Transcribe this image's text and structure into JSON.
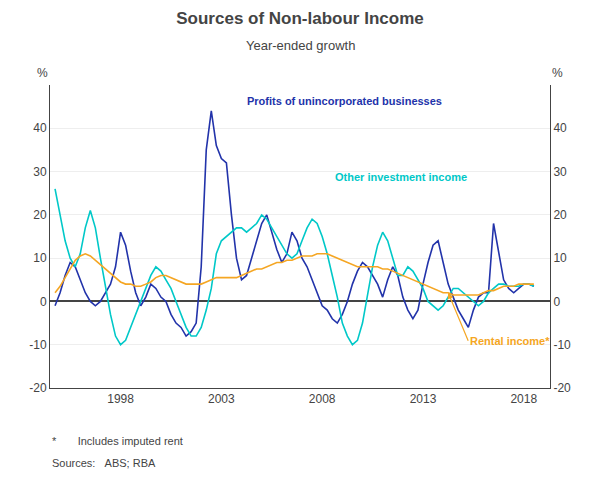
{
  "chart_data": {
    "type": "line",
    "title": "Sources of Non-labour Income",
    "subtitle": "Year-ended growth",
    "ylabel": "%",
    "y2label": "%",
    "footnotes": [
      "*       Includes imputed rent",
      "Sources:   ABS; RBA"
    ],
    "xlim": [
      1994.5,
      2019.3
    ],
    "xticks": [
      1998,
      2003,
      2008,
      2013,
      2018
    ],
    "ylim": [
      -20,
      50
    ],
    "yticks": [
      -20,
      -10,
      0,
      10,
      20,
      30,
      40
    ],
    "y2lim": [
      -20,
      50
    ],
    "y2ticks": [
      -20,
      -10,
      0,
      10,
      20,
      30,
      40
    ],
    "grid": "y",
    "x": [
      1994.75,
      1995.0,
      1995.25,
      1995.5,
      1995.75,
      1996.0,
      1996.25,
      1996.5,
      1996.75,
      1997.0,
      1997.25,
      1997.5,
      1997.75,
      1998.0,
      1998.25,
      1998.5,
      1998.75,
      1999.0,
      1999.25,
      1999.5,
      1999.75,
      2000.0,
      2000.25,
      2000.5,
      2000.75,
      2001.0,
      2001.25,
      2001.5,
      2001.75,
      2002.0,
      2002.25,
      2002.5,
      2002.75,
      2003.0,
      2003.25,
      2003.5,
      2003.75,
      2004.0,
      2004.25,
      2004.5,
      2004.75,
      2005.0,
      2005.25,
      2005.5,
      2005.75,
      2006.0,
      2006.25,
      2006.5,
      2006.75,
      2007.0,
      2007.25,
      2007.5,
      2007.75,
      2008.0,
      2008.25,
      2008.5,
      2008.75,
      2009.0,
      2009.25,
      2009.5,
      2009.75,
      2010.0,
      2010.25,
      2010.5,
      2010.75,
      2011.0,
      2011.25,
      2011.5,
      2011.75,
      2012.0,
      2012.25,
      2012.5,
      2012.75,
      2013.0,
      2013.25,
      2013.5,
      2013.75,
      2014.0,
      2014.25,
      2014.5,
      2014.75,
      2015.0,
      2015.25,
      2015.5,
      2015.75,
      2016.0,
      2016.25,
      2016.5,
      2016.75,
      2017.0,
      2017.25,
      2017.5,
      2017.75,
      2018.0,
      2018.25,
      2018.5
    ],
    "series": [
      {
        "name": "Profits of unincorporated businesses",
        "color": "#2233aa",
        "values": [
          -1.0,
          2.0,
          6.0,
          9.0,
          8.0,
          5.0,
          2.0,
          0.0,
          -1.0,
          0.0,
          2.0,
          4.0,
          8.0,
          16.0,
          13.0,
          7.0,
          2.0,
          -1.0,
          1.0,
          4.0,
          3.0,
          1.0,
          0.0,
          -3.0,
          -5.0,
          -6.0,
          -8.0,
          -7.0,
          -5.0,
          8.0,
          35.0,
          44.0,
          36.0,
          33.0,
          32.0,
          20.0,
          10.0,
          5.0,
          6.0,
          10.0,
          14.0,
          18.0,
          20.0,
          16.0,
          12.0,
          9.0,
          11.0,
          16.0,
          14.0,
          10.0,
          8.0,
          5.0,
          2.0,
          -1.0,
          -2.0,
          -4.0,
          -5.0,
          -3.0,
          0.0,
          4.0,
          7.0,
          9.0,
          8.0,
          6.0,
          4.0,
          1.0,
          5.0,
          8.0,
          6.0,
          1.0,
          -2.0,
          -4.0,
          -2.0,
          4.0,
          9.0,
          13.0,
          14.0,
          9.0,
          4.0,
          1.0,
          -2.0,
          -4.0,
          -6.0,
          -2.0,
          1.0,
          2.0,
          2.0,
          18.0,
          11.0,
          5.0,
          3.0,
          2.0,
          3.0,
          4.0,
          4.0,
          3.5
        ]
      },
      {
        "name": "Other investment income",
        "color": "#00c8c8",
        "values": [
          26.0,
          20.0,
          14.0,
          10.0,
          8.0,
          11.0,
          17.0,
          21.0,
          17.0,
          10.0,
          3.0,
          -3.0,
          -8.0,
          -10.0,
          -9.0,
          -6.0,
          -3.0,
          0.0,
          3.0,
          6.0,
          8.0,
          7.0,
          5.0,
          3.0,
          0.0,
          -3.0,
          -6.0,
          -8.0,
          -8.0,
          -6.0,
          -2.0,
          3.0,
          11.0,
          14.0,
          15.0,
          16.0,
          17.0,
          17.0,
          16.0,
          17.0,
          18.0,
          20.0,
          19.0,
          17.0,
          15.0,
          13.0,
          11.0,
          10.0,
          11.0,
          14.0,
          17.0,
          19.0,
          18.0,
          15.0,
          11.0,
          6.0,
          1.0,
          -5.0,
          -8.0,
          -10.0,
          -9.0,
          -5.0,
          2.0,
          8.0,
          13.0,
          16.0,
          14.0,
          10.0,
          6.0,
          6.0,
          8.0,
          7.0,
          5.0,
          3.0,
          0.0,
          -1.0,
          -2.0,
          -1.0,
          1.0,
          3.0,
          3.0,
          2.0,
          1.0,
          0.0,
          -1.0,
          0.0,
          2.0,
          3.0,
          4.0,
          4.0,
          3.5,
          3.5,
          3.5,
          4.0,
          4.0,
          3.5
        ]
      },
      {
        "name": "Rental income*",
        "color": "#f5a623",
        "values": [
          2.0,
          3.5,
          5.5,
          7.5,
          9.5,
          10.5,
          11.0,
          10.5,
          9.5,
          8.5,
          7.5,
          6.5,
          5.5,
          4.5,
          4.0,
          4.0,
          3.5,
          3.5,
          4.0,
          4.5,
          5.5,
          6.0,
          6.0,
          5.5,
          5.0,
          4.5,
          4.0,
          4.0,
          4.0,
          4.0,
          4.5,
          5.0,
          5.5,
          5.5,
          5.5,
          5.5,
          5.5,
          6.0,
          6.5,
          7.0,
          7.5,
          7.5,
          8.0,
          8.5,
          9.0,
          9.0,
          9.5,
          9.5,
          10.0,
          10.5,
          10.5,
          10.5,
          11.0,
          11.0,
          11.0,
          10.5,
          10.0,
          9.5,
          9.0,
          8.5,
          8.0,
          8.0,
          8.0,
          8.0,
          8.0,
          7.5,
          7.5,
          7.0,
          6.5,
          6.0,
          5.5,
          5.0,
          4.5,
          4.0,
          3.5,
          3.0,
          2.5,
          2.0,
          2.0,
          1.5,
          1.5,
          1.5,
          1.5,
          1.5,
          1.5,
          2.0,
          2.5,
          2.5,
          3.0,
          3.5,
          3.5,
          3.5,
          4.0,
          4.0,
          4.0,
          4.0
        ]
      }
    ]
  }
}
